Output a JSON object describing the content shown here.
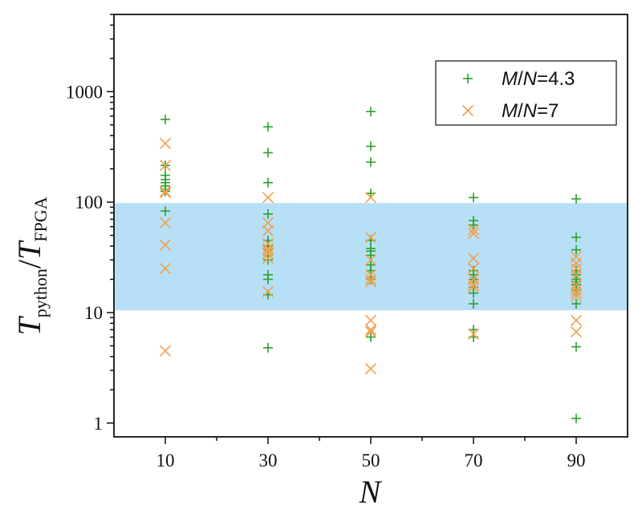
{
  "chart_data": {
    "type": "scatter",
    "xlabel": "N",
    "ylabel": {
      "main": "T",
      "sub1": "python",
      "slash": "/",
      "main2": "T",
      "sub2": "FPGA"
    },
    "xlim": [
      0,
      100
    ],
    "ylim": [
      0.75,
      5000
    ],
    "yscale": "log",
    "xticks": [
      10,
      30,
      50,
      70,
      90
    ],
    "yticks": [
      1,
      10,
      100,
      1000
    ],
    "ytick_labels": [
      "1",
      "10",
      "100",
      "1000"
    ],
    "shaded_band": {
      "y_from": 10.5,
      "y_to": 98,
      "color": "#b7e0f7"
    },
    "legend_position": "top-right",
    "series": [
      {
        "name": "M/N=4.3",
        "label_parts": [
          "M",
          "/",
          "N",
          "=4.3"
        ],
        "marker": "plus",
        "color": "#2ca02c",
        "points": [
          {
            "x": 10,
            "y": 560
          },
          {
            "x": 10,
            "y": 215
          },
          {
            "x": 10,
            "y": 175
          },
          {
            "x": 10,
            "y": 160
          },
          {
            "x": 10,
            "y": 150
          },
          {
            "x": 10,
            "y": 140
          },
          {
            "x": 10,
            "y": 130
          },
          {
            "x": 10,
            "y": 125
          },
          {
            "x": 10,
            "y": 83
          },
          {
            "x": 30,
            "y": 480
          },
          {
            "x": 30,
            "y": 280
          },
          {
            "x": 30,
            "y": 150
          },
          {
            "x": 30,
            "y": 78
          },
          {
            "x": 30,
            "y": 45
          },
          {
            "x": 30,
            "y": 40
          },
          {
            "x": 30,
            "y": 37
          },
          {
            "x": 30,
            "y": 33
          },
          {
            "x": 30,
            "y": 30
          },
          {
            "x": 30,
            "y": 22
          },
          {
            "x": 30,
            "y": 20
          },
          {
            "x": 30,
            "y": 14.5
          },
          {
            "x": 30,
            "y": 4.8
          },
          {
            "x": 50,
            "y": 660
          },
          {
            "x": 50,
            "y": 320
          },
          {
            "x": 50,
            "y": 230
          },
          {
            "x": 50,
            "y": 120
          },
          {
            "x": 50,
            "y": 45
          },
          {
            "x": 50,
            "y": 38
          },
          {
            "x": 50,
            "y": 36
          },
          {
            "x": 50,
            "y": 33
          },
          {
            "x": 50,
            "y": 27
          },
          {
            "x": 50,
            "y": 24
          },
          {
            "x": 50,
            "y": 20
          },
          {
            "x": 50,
            "y": 6
          },
          {
            "x": 70,
            "y": 110
          },
          {
            "x": 70,
            "y": 68
          },
          {
            "x": 70,
            "y": 62
          },
          {
            "x": 70,
            "y": 24
          },
          {
            "x": 70,
            "y": 22
          },
          {
            "x": 70,
            "y": 20
          },
          {
            "x": 70,
            "y": 17
          },
          {
            "x": 70,
            "y": 15
          },
          {
            "x": 70,
            "y": 12
          },
          {
            "x": 70,
            "y": 7
          },
          {
            "x": 70,
            "y": 6
          },
          {
            "x": 90,
            "y": 107
          },
          {
            "x": 90,
            "y": 48
          },
          {
            "x": 90,
            "y": 37
          },
          {
            "x": 90,
            "y": 24
          },
          {
            "x": 90,
            "y": 22
          },
          {
            "x": 90,
            "y": 20
          },
          {
            "x": 90,
            "y": 19
          },
          {
            "x": 90,
            "y": 18
          },
          {
            "x": 90,
            "y": 16
          },
          {
            "x": 90,
            "y": 12
          },
          {
            "x": 90,
            "y": 4.9
          },
          {
            "x": 90,
            "y": 1.1
          }
        ]
      },
      {
        "name": "M/N=7",
        "label_parts": [
          "M",
          "/",
          "N",
          "=7"
        ],
        "marker": "cross",
        "color": "#f0a04b",
        "points": [
          {
            "x": 10,
            "y": 340
          },
          {
            "x": 10,
            "y": 215
          },
          {
            "x": 10,
            "y": 125
          },
          {
            "x": 10,
            "y": 122
          },
          {
            "x": 10,
            "y": 65
          },
          {
            "x": 10,
            "y": 41
          },
          {
            "x": 10,
            "y": 25
          },
          {
            "x": 10,
            "y": 4.5
          },
          {
            "x": 30,
            "y": 110
          },
          {
            "x": 30,
            "y": 65
          },
          {
            "x": 30,
            "y": 55
          },
          {
            "x": 30,
            "y": 42
          },
          {
            "x": 30,
            "y": 38
          },
          {
            "x": 30,
            "y": 36
          },
          {
            "x": 30,
            "y": 34
          },
          {
            "x": 30,
            "y": 31
          },
          {
            "x": 30,
            "y": 15.5
          },
          {
            "x": 50,
            "y": 110
          },
          {
            "x": 50,
            "y": 48
          },
          {
            "x": 50,
            "y": 30
          },
          {
            "x": 50,
            "y": 22
          },
          {
            "x": 50,
            "y": 20
          },
          {
            "x": 50,
            "y": 19
          },
          {
            "x": 50,
            "y": 8.5
          },
          {
            "x": 50,
            "y": 7
          },
          {
            "x": 50,
            "y": 6.7
          },
          {
            "x": 50,
            "y": 3.1
          },
          {
            "x": 70,
            "y": 56
          },
          {
            "x": 70,
            "y": 52
          },
          {
            "x": 70,
            "y": 31
          },
          {
            "x": 70,
            "y": 25
          },
          {
            "x": 70,
            "y": 20
          },
          {
            "x": 70,
            "y": 18
          },
          {
            "x": 70,
            "y": 17
          },
          {
            "x": 70,
            "y": 6.4
          },
          {
            "x": 90,
            "y": 32
          },
          {
            "x": 90,
            "y": 28
          },
          {
            "x": 90,
            "y": 25
          },
          {
            "x": 90,
            "y": 22
          },
          {
            "x": 90,
            "y": 18
          },
          {
            "x": 90,
            "y": 16
          },
          {
            "x": 90,
            "y": 15
          },
          {
            "x": 90,
            "y": 14
          },
          {
            "x": 90,
            "y": 8.5
          },
          {
            "x": 90,
            "y": 6.7
          }
        ]
      }
    ]
  }
}
